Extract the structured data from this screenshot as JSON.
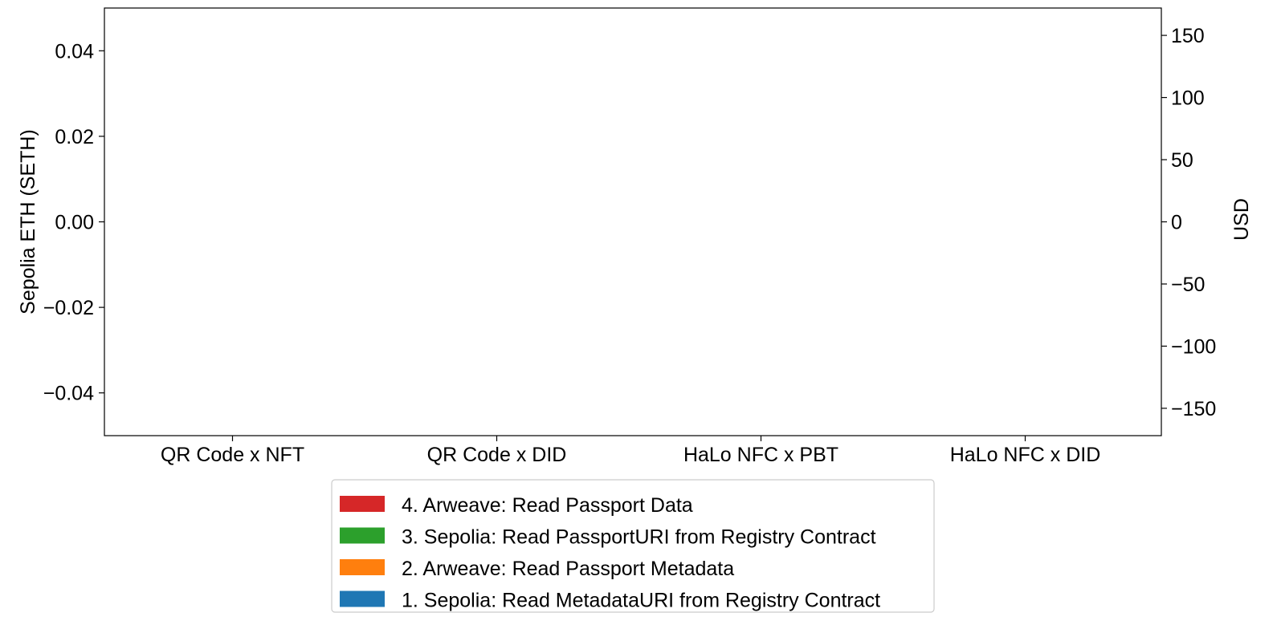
{
  "chart_data": {
    "type": "bar",
    "stacked": true,
    "categories": [
      "QR Code x NFT",
      "QR Code x DID",
      "HaLo NFC x PBT",
      "HaLo NFC x DID"
    ],
    "series": [
      {
        "name": "1. Sepolia: Read MetadataURI from Registry Contract",
        "color": "#1f77b4",
        "values": [
          0,
          0,
          0,
          0
        ]
      },
      {
        "name": "2. Arweave: Read Passport Metadata",
        "color": "#ff7f0e",
        "values": [
          0,
          0,
          0,
          0
        ]
      },
      {
        "name": "3. Sepolia: Read PassportURI from Registry Contract",
        "color": "#2ca02c",
        "values": [
          0,
          0,
          0,
          0
        ]
      },
      {
        "name": "4. Arweave: Read Passport Data",
        "color": "#d62728",
        "values": [
          0,
          0,
          0,
          0
        ]
      }
    ],
    "ylabel": "Sepolia ETH (SETH)",
    "y2label": "USD",
    "ylim": [
      -0.05,
      0.05
    ],
    "y2lim": [
      -172,
      172
    ],
    "yticks": [
      -0.04,
      -0.02,
      0.0,
      0.02,
      0.04
    ],
    "yticklabels": [
      "−0.04",
      "−0.02",
      "0.00",
      "0.02",
      "0.04"
    ],
    "y2ticks": [
      -150,
      -100,
      -50,
      0,
      50,
      100,
      150
    ],
    "y2ticklabels": [
      "−150",
      "−100",
      "−50",
      "0",
      "50",
      "100",
      "150"
    ],
    "grid": false,
    "legend_location": "below plot, center",
    "legend_order": [
      3,
      2,
      1,
      0
    ]
  }
}
